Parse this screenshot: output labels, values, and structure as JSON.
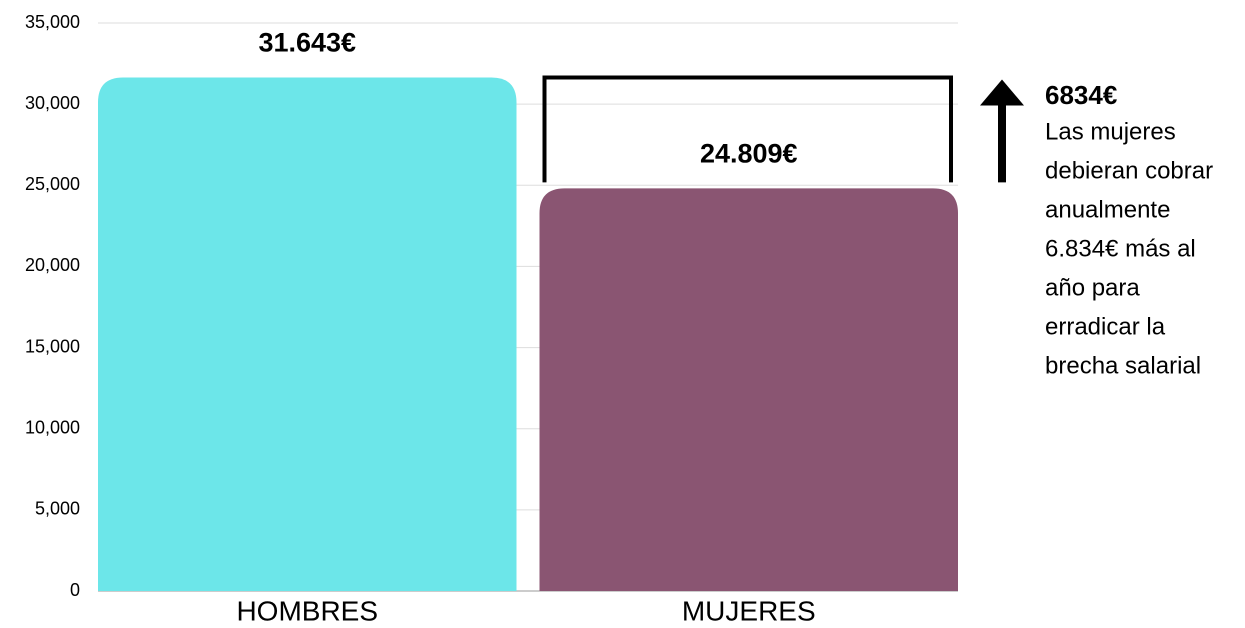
{
  "chart_data": {
    "type": "bar",
    "categories": [
      "HOMBRES",
      "MUJERES"
    ],
    "values": [
      31643,
      24809
    ],
    "value_labels": [
      "31.643€",
      "24.809€"
    ],
    "colors": [
      "#6ce6e9",
      "#8a5572"
    ],
    "ylim": [
      0,
      35000
    ],
    "yticks": [
      0,
      {
        "value": 5000,
        "label": "5,000"
      },
      {
        "value": 10000,
        "label": "10,000"
      },
      {
        "value": 15000,
        "label": "15,000"
      },
      {
        "value": 20000,
        "label": "20,000"
      },
      {
        "value": 25000,
        "label": "25,000"
      },
      {
        "value": 30000,
        "label": "30,000"
      },
      {
        "value": 35000,
        "label": "35,000"
      }
    ],
    "grid": true,
    "annotation": {
      "title": "6834€",
      "lines": [
        "Las mujeres",
        "debieran cobrar",
        "anualmente",
        "6.834€ más al",
        "año para",
        "erradicar la",
        "brecha salarial"
      ]
    }
  }
}
